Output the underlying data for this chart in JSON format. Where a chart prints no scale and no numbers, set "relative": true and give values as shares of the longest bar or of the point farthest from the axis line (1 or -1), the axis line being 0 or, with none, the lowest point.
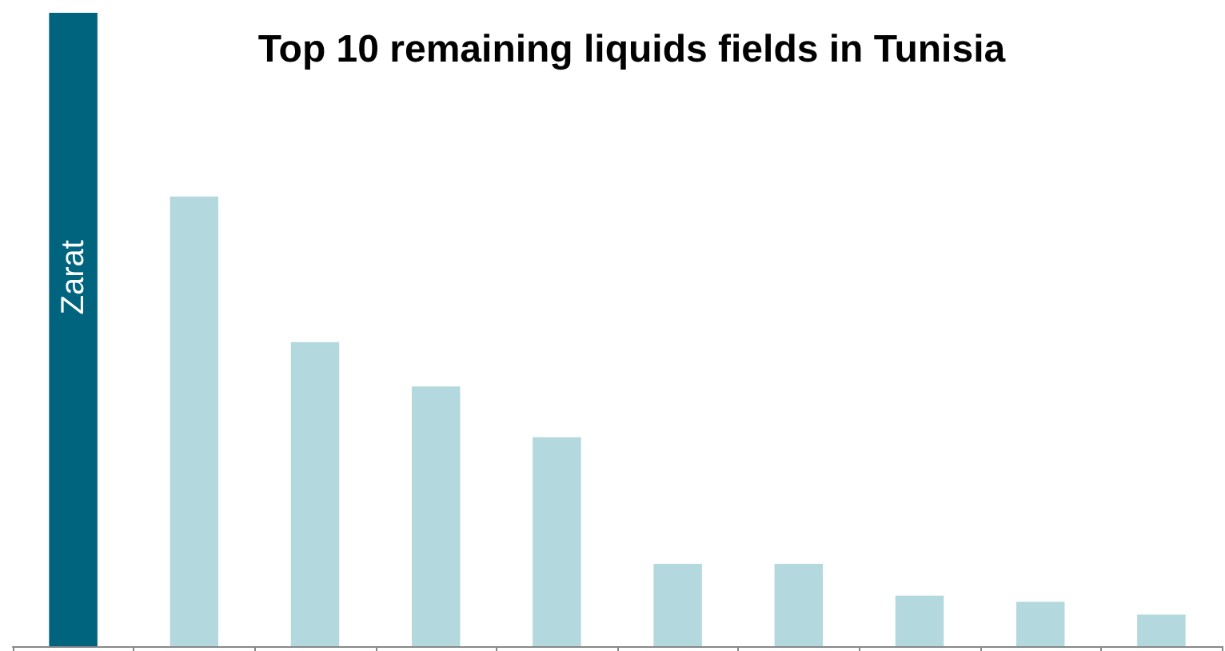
{
  "chart_data": {
    "type": "bar",
    "title": "Top 10 remaining liquids fields in Tunisia",
    "categories": [
      "Zarat",
      null,
      null,
      null,
      null,
      null,
      null,
      null,
      null,
      null
    ],
    "values": [
      1,
      0.71,
      0.48,
      0.41,
      0.33,
      0.13,
      0.13,
      0.08,
      0.07,
      0.05
    ],
    "colors": [
      "#00647f",
      "#b3d8de",
      "#b3d8de",
      "#b3d8de",
      "#b3d8de",
      "#b3d8de",
      "#b3d8de",
      "#b3d8de",
      "#b3d8de",
      "#b3d8de"
    ],
    "relative": true
  }
}
